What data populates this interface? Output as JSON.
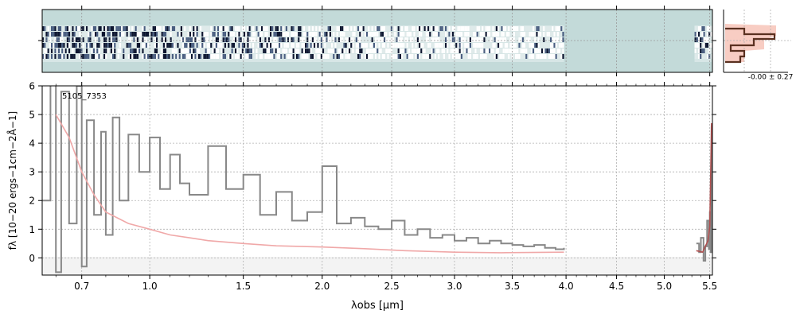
{
  "chart_data": [
    {
      "type": "heatmap",
      "panel": "2D spectrum",
      "x_ticks_shared_with_spectrum": true,
      "colormap": "dark navy / white over light teal background",
      "coverage_um": [
        [
          0.55,
          3.98
        ],
        [
          5.33,
          5.52
        ]
      ]
    },
    {
      "type": "line",
      "panel": "cross-dispersion profile",
      "label": "-0.00 ± 0.27",
      "series": [
        {
          "color": "#5a3020",
          "values": [
            [
              0.0,
              0
            ],
            [
              0.3,
              1
            ],
            [
              0.9,
              2
            ],
            [
              0.4,
              3
            ],
            [
              0.6,
              4
            ],
            [
              0.2,
              5
            ],
            [
              0.0,
              6
            ]
          ]
        },
        {
          "color": "#f7c4b8",
          "fill": true
        }
      ]
    },
    {
      "type": "line",
      "panel": "1D spectrum",
      "annotation": "5105_7353",
      "xlabel": "λobs [μm]",
      "ylabel": "fλ [10−20 ergs−1cm−2Å−1]",
      "xscale": "sqrt",
      "xlim": [
        0.55,
        5.53
      ],
      "ylim": [
        -0.6,
        6
      ],
      "x_ticks": [
        0.7,
        1.0,
        1.5,
        2.0,
        2.5,
        3.0,
        3.5,
        4.0,
        4.5,
        5.0,
        5.5
      ],
      "y_ticks": [
        0,
        1,
        2,
        3,
        4,
        5,
        6
      ],
      "grid": true,
      "series": [
        {
          "color": "#888888",
          "style": "steps",
          "x": [
            0.55,
            0.58,
            0.6,
            0.62,
            0.65,
            0.68,
            0.7,
            0.72,
            0.75,
            0.78,
            0.8,
            0.83,
            0.86,
            0.9,
            0.95,
            1.0,
            1.05,
            1.1,
            1.15,
            1.2,
            1.3,
            1.4,
            1.5,
            1.6,
            1.7,
            1.8,
            1.9,
            2.0,
            2.1,
            2.2,
            2.3,
            2.4,
            2.5,
            2.6,
            2.7,
            2.8,
            2.9,
            3.0,
            3.1,
            3.2,
            3.3,
            3.4,
            3.5,
            3.6,
            3.7,
            3.8,
            3.9,
            3.98
          ],
          "y": [
            2.0,
            6.5,
            -0.5,
            5.8,
            1.2,
            6.0,
            -0.3,
            4.8,
            1.5,
            4.4,
            0.8,
            4.9,
            2.0,
            4.3,
            3.0,
            4.2,
            2.4,
            3.6,
            2.6,
            2.2,
            3.9,
            2.4,
            2.9,
            1.5,
            2.3,
            1.3,
            1.6,
            3.2,
            1.2,
            1.4,
            1.1,
            1.0,
            1.3,
            0.8,
            1.0,
            0.7,
            0.8,
            0.6,
            0.7,
            0.5,
            0.6,
            0.5,
            0.45,
            0.4,
            0.45,
            0.35,
            0.3,
            0.35
          ]
        },
        {
          "color": "#888888",
          "style": "steps",
          "x": [
            5.35,
            5.38,
            5.4,
            5.43,
            5.45,
            5.47,
            5.49,
            5.5,
            5.51,
            5.52
          ],
          "y": [
            0.5,
            0.2,
            0.7,
            -0.1,
            0.4,
            1.3,
            0.3,
            1.6,
            0.2,
            4.6
          ]
        },
        {
          "color": "#f0a8a8",
          "style": "line",
          "x": [
            0.6,
            0.65,
            0.7,
            0.75,
            0.8,
            0.9,
            1.0,
            1.1,
            1.2,
            1.3,
            1.5,
            1.7,
            2.0,
            2.3,
            2.6,
            3.0,
            3.4,
            3.98
          ],
          "y": [
            5.0,
            4.2,
            3.0,
            2.2,
            1.6,
            1.2,
            1.0,
            0.8,
            0.7,
            0.6,
            0.5,
            0.42,
            0.38,
            0.32,
            0.25,
            0.2,
            0.18,
            0.2
          ]
        },
        {
          "color": "#b05050",
          "style": "line",
          "x": [
            5.35,
            5.42,
            5.48,
            5.5,
            5.52
          ],
          "y": [
            0.25,
            0.2,
            0.6,
            1.1,
            4.7
          ]
        }
      ]
    }
  ]
}
